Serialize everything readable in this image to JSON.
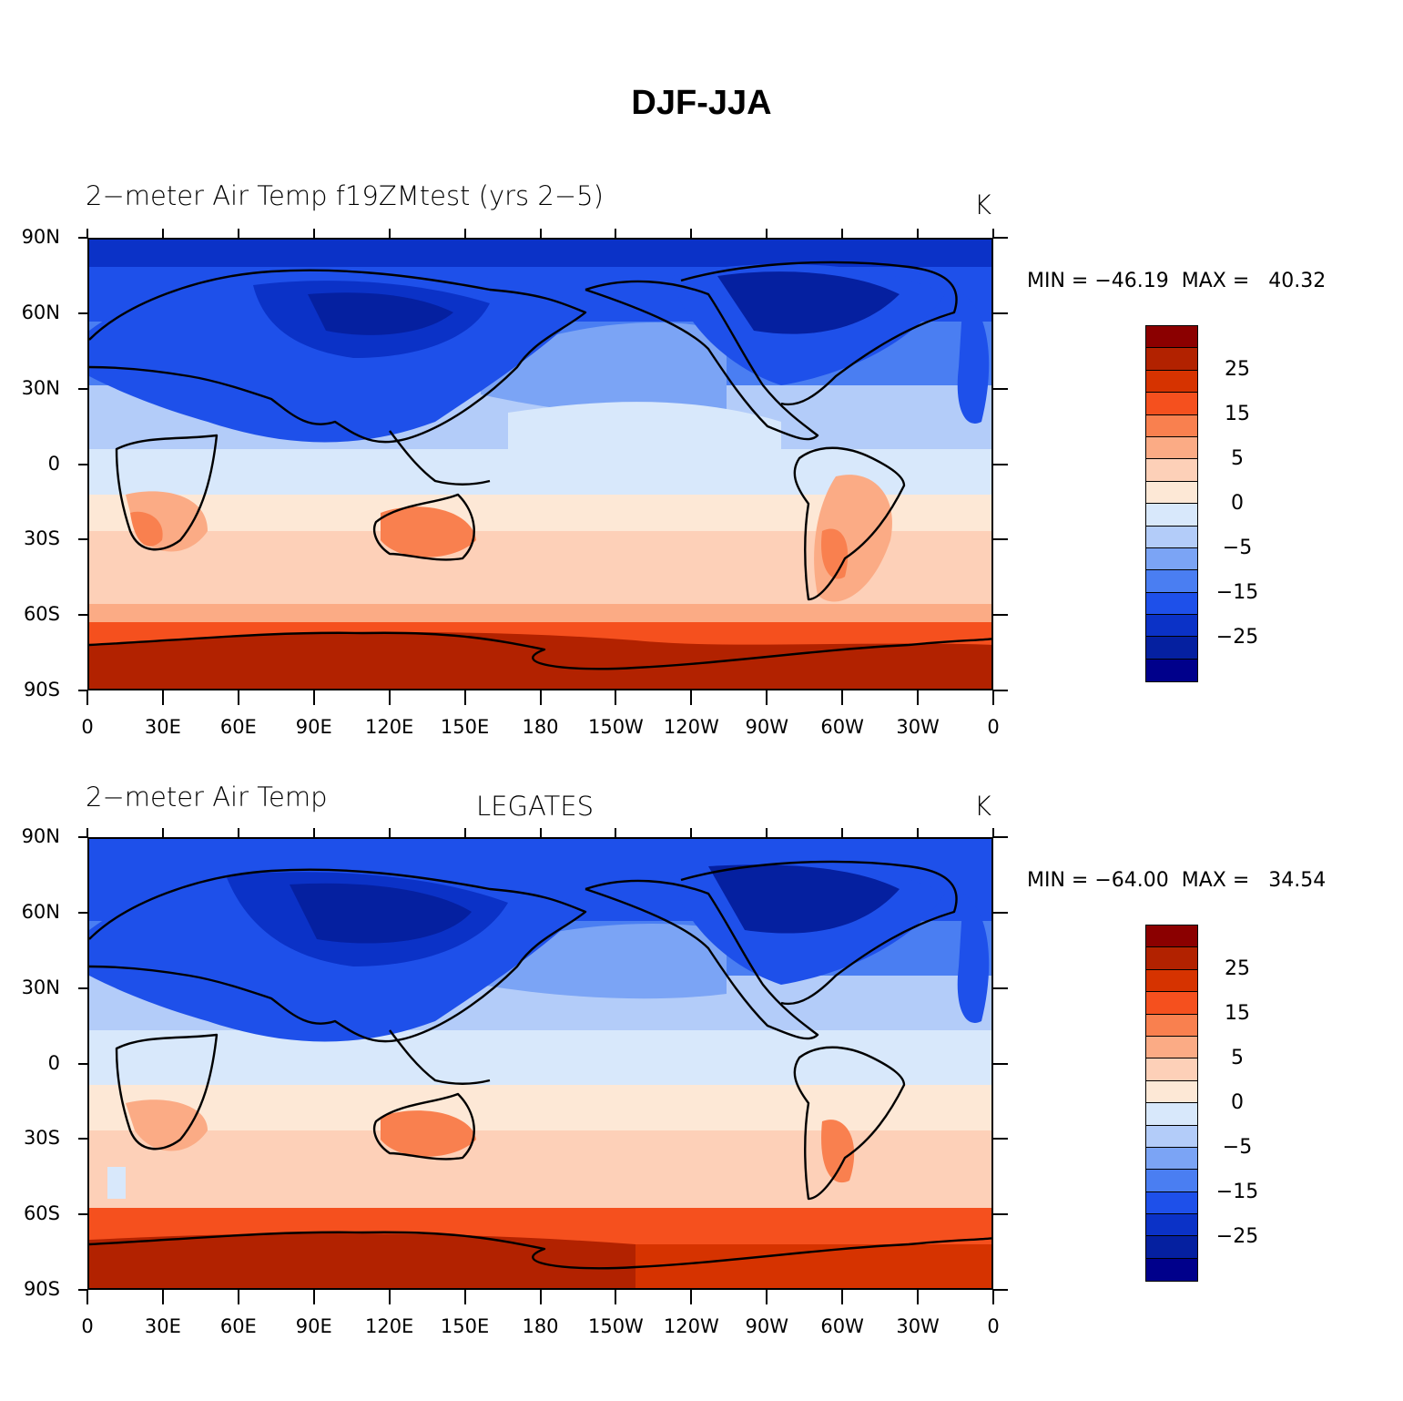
{
  "figure": {
    "title": "DJF-JJA"
  },
  "lat_labels": [
    "90N",
    "60N",
    "30N",
    "0",
    "30S",
    "60S",
    "90S"
  ],
  "lon_labels": [
    "0",
    "30E",
    "60E",
    "90E",
    "120E",
    "150E",
    "180",
    "150W",
    "120W",
    "90W",
    "60W",
    "30W",
    "0"
  ],
  "colorbar": {
    "colors": [
      "#8b0000",
      "#b22200",
      "#d63300",
      "#f5501e",
      "#f9804f",
      "#fbab85",
      "#fdd0b8",
      "#fde8d6",
      "#d8e8fb",
      "#b3ccf9",
      "#7ba4f5",
      "#4a7ef2",
      "#1e50ea",
      "#0b32c7",
      "#0520a0",
      "#00008b"
    ],
    "labels": [
      "25",
      "15",
      "5",
      "0",
      "−5",
      "−15",
      "−25"
    ]
  },
  "panels": [
    {
      "left_title": "2−meter Air Temp f19ZMtest (yrs 2−5)",
      "center_title": "",
      "units": "K",
      "min_max": "MIN = −46.19  MAX =   40.32",
      "map_legend": "MIN = -46.19, MAX = 40.32"
    },
    {
      "left_title": "2−meter Air Temp",
      "center_title": "LEGATES",
      "units": "K",
      "min_max": "MIN = −64.00  MAX =   34.54",
      "map_legend": "MIN = -64.00, MAX = 34.54"
    }
  ]
}
